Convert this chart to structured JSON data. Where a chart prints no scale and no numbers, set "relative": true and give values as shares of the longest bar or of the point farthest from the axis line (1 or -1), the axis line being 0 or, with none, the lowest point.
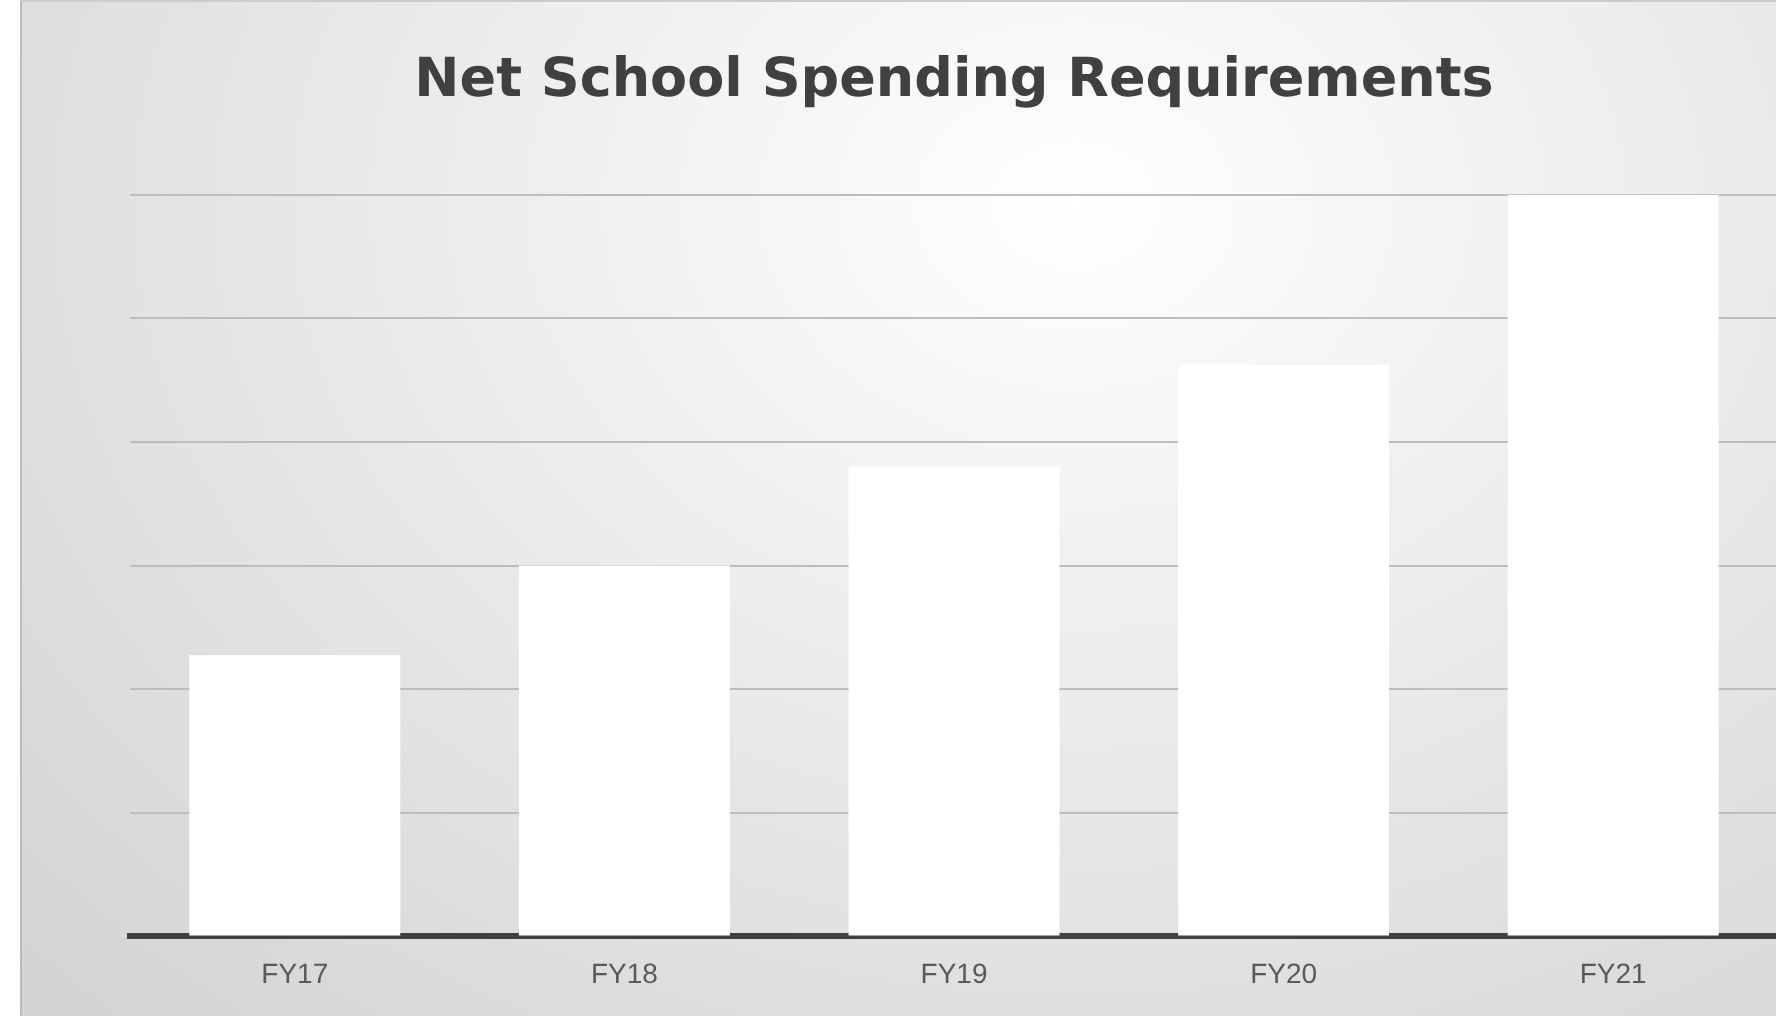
{
  "chart_data": {
    "type": "bar",
    "title": "Net School Spending Requirements",
    "categories": [
      "FY17",
      "FY18",
      "FY19",
      "FY20",
      "FY21"
    ],
    "values": [
      0.379,
      0.5,
      0.634,
      0.771,
      1
    ],
    "color": "#ffffff",
    "relative": true,
    "grid": "y",
    "legend": false
  }
}
